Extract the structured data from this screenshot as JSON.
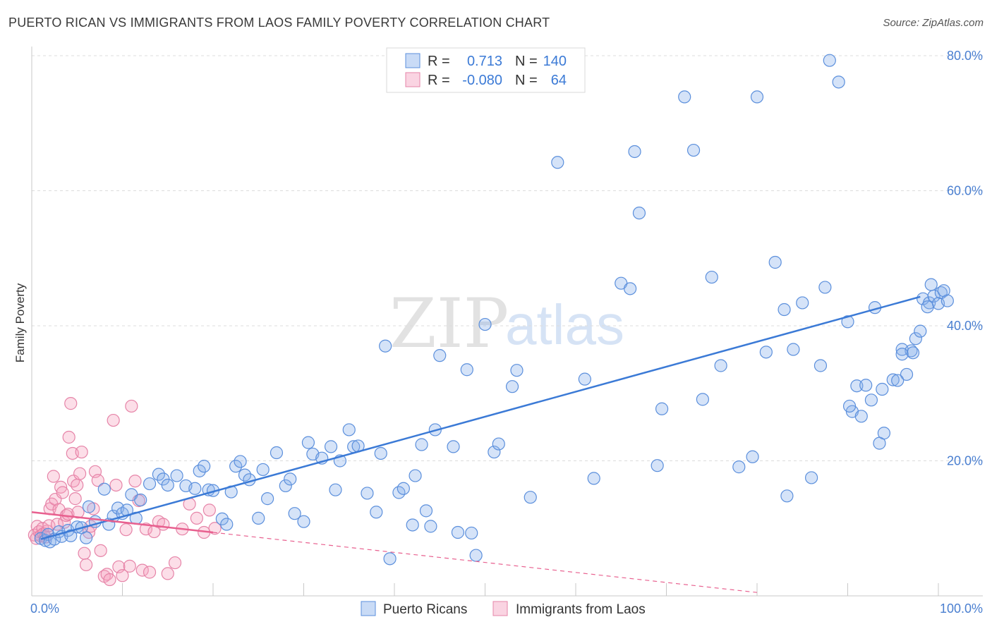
{
  "title": "PUERTO RICAN VS IMMIGRANTS FROM LAOS FAMILY POVERTY CORRELATION CHART",
  "source": "Source: ZipAtlas.com",
  "watermark": {
    "zip": "ZIP",
    "atlas": "atlas"
  },
  "colors": {
    "blue": "#3b7ad6",
    "pink": "#e8608f",
    "grid": "#dcdcdc"
  },
  "legend": {
    "rows": [
      {
        "r_label": "R =",
        "r_value": "0.713",
        "n_label": "N =",
        "n_value": "140"
      },
      {
        "r_label": "R =",
        "r_value": "-0.080",
        "n_label": "N =",
        "n_value": "64"
      }
    ]
  },
  "chart_data": {
    "type": "scatter",
    "title": "PUERTO RICAN VS IMMIGRANTS FROM LAOS FAMILY POVERTY CORRELATION CHART",
    "xlabel": "",
    "ylabel": "Family Poverty",
    "xlim": [
      0,
      100
    ],
    "ylim": [
      0,
      80
    ],
    "x_tick_labels": [
      "0.0%",
      "100.0%"
    ],
    "y_ticks": [
      20,
      40,
      60,
      80
    ],
    "y_tick_labels": [
      "20.0%",
      "40.0%",
      "60.0%",
      "80.0%"
    ],
    "grid": true,
    "series": [
      {
        "name": "Puerto Ricans",
        "r": 0.713,
        "n": 140,
        "trend": {
          "x0": 1,
          "y0": 8.4,
          "x1": 98,
          "y1": 44.3
        },
        "points": [
          [
            1,
            8.5
          ],
          [
            1.5,
            8.2
          ],
          [
            1.8,
            9.1
          ],
          [
            2,
            8.0
          ],
          [
            2.5,
            8.4
          ],
          [
            3,
            9.5
          ],
          [
            3.3,
            8.8
          ],
          [
            4,
            9.7
          ],
          [
            4.3,
            8.9
          ],
          [
            5,
            10.2
          ],
          [
            5.5,
            10.1
          ],
          [
            6,
            8.6
          ],
          [
            6.3,
            13.2
          ],
          [
            7,
            11.0
          ],
          [
            8,
            15.8
          ],
          [
            8.5,
            10.6
          ],
          [
            9,
            11.8
          ],
          [
            9.5,
            13.0
          ],
          [
            10,
            12.2
          ],
          [
            10.5,
            12.7
          ],
          [
            11,
            15.0
          ],
          [
            11.5,
            11.5
          ],
          [
            12,
            14.2
          ],
          [
            13,
            16.6
          ],
          [
            14,
            18.0
          ],
          [
            14.5,
            17.3
          ],
          [
            15,
            16.4
          ],
          [
            16,
            17.8
          ],
          [
            17,
            16.3
          ],
          [
            18,
            15.9
          ],
          [
            18.5,
            18.5
          ],
          [
            19,
            19.2
          ],
          [
            19.5,
            15.7
          ],
          [
            20,
            15.6
          ],
          [
            21,
            11.4
          ],
          [
            21.5,
            10.6
          ],
          [
            22,
            15.4
          ],
          [
            22.5,
            19.2
          ],
          [
            23,
            19.9
          ],
          [
            23.5,
            17.9
          ],
          [
            24,
            17.2
          ],
          [
            25,
            11.5
          ],
          [
            25.5,
            18.7
          ],
          [
            26,
            14.4
          ],
          [
            27,
            21.2
          ],
          [
            28,
            16.3
          ],
          [
            28.5,
            17.3
          ],
          [
            29,
            12.2
          ],
          [
            30,
            11.0
          ],
          [
            30.5,
            22.7
          ],
          [
            31,
            21.0
          ],
          [
            32,
            20.4
          ],
          [
            33,
            22.1
          ],
          [
            33.5,
            15.7
          ],
          [
            34,
            20.0
          ],
          [
            35,
            24.6
          ],
          [
            35.5,
            22.1
          ],
          [
            36,
            22.2
          ],
          [
            37,
            15.2
          ],
          [
            38,
            12.4
          ],
          [
            38.5,
            21.1
          ],
          [
            39,
            37.0
          ],
          [
            39.5,
            5.5
          ],
          [
            40.5,
            15.3
          ],
          [
            41,
            15.9
          ],
          [
            42,
            10.5
          ],
          [
            42.3,
            17.8
          ],
          [
            43,
            22.4
          ],
          [
            43.5,
            12.6
          ],
          [
            44,
            10.3
          ],
          [
            44.5,
            24.6
          ],
          [
            45,
            35.6
          ],
          [
            46.5,
            22.1
          ],
          [
            47,
            9.4
          ],
          [
            48,
            33.5
          ],
          [
            48.5,
            9.3
          ],
          [
            49,
            6.0
          ],
          [
            50,
            40.2
          ],
          [
            51,
            21.3
          ],
          [
            51.5,
            22.5
          ],
          [
            53,
            31.0
          ],
          [
            53.5,
            33.4
          ],
          [
            55,
            14.6
          ],
          [
            58,
            64.2
          ],
          [
            61,
            32.1
          ],
          [
            62,
            17.4
          ],
          [
            65,
            46.3
          ],
          [
            66,
            45.5
          ],
          [
            66.5,
            65.8
          ],
          [
            67,
            56.7
          ],
          [
            69,
            19.3
          ],
          [
            69.5,
            27.7
          ],
          [
            72,
            73.9
          ],
          [
            73,
            66.0
          ],
          [
            74,
            29.1
          ],
          [
            75,
            47.2
          ],
          [
            76,
            34.1
          ],
          [
            78,
            19.1
          ],
          [
            79.5,
            20.6
          ],
          [
            80,
            73.9
          ],
          [
            81,
            36.1
          ],
          [
            82,
            49.4
          ],
          [
            83,
            42.4
          ],
          [
            83.3,
            14.8
          ],
          [
            84,
            36.5
          ],
          [
            85,
            43.4
          ],
          [
            86,
            17.5
          ],
          [
            87,
            34.1
          ],
          [
            87.5,
            45.7
          ],
          [
            88,
            79.3
          ],
          [
            89,
            76.1
          ],
          [
            90,
            40.6
          ],
          [
            90.5,
            27.3
          ],
          [
            91,
            31.1
          ],
          [
            91.5,
            26.6
          ],
          [
            92,
            31.2
          ],
          [
            93,
            42.7
          ],
          [
            93.5,
            22.6
          ],
          [
            94,
            24.1
          ],
          [
            95,
            32.0
          ],
          [
            96,
            36.5
          ],
          [
            96.5,
            32.8
          ],
          [
            97,
            36.3
          ],
          [
            97.5,
            38.1
          ],
          [
            98,
            39.2
          ],
          [
            98.3,
            44.0
          ],
          [
            99,
            43.4
          ],
          [
            99.5,
            44.4
          ],
          [
            100,
            43.3
          ],
          [
            100.3,
            44.9
          ],
          [
            100.6,
            45.2
          ],
          [
            101,
            43.7
          ],
          [
            99.2,
            46.1
          ],
          [
            98.8,
            42.8
          ],
          [
            97.2,
            36.0
          ],
          [
            96.0,
            35.8
          ],
          [
            95.5,
            31.9
          ],
          [
            93.8,
            30.6
          ],
          [
            92.6,
            29.0
          ],
          [
            90.2,
            28.1
          ]
        ]
      },
      {
        "name": "Immigrants from Laos",
        "r": -0.08,
        "n": 64,
        "trend": {
          "x0": 0,
          "y0": 12.4,
          "x1": 20,
          "y1": 9.4
        },
        "trend_extension": {
          "x0": 20,
          "y0": 9.4,
          "x1": 80,
          "y1": 0.5
        },
        "points": [
          [
            0.3,
            9.0
          ],
          [
            0.5,
            8.5
          ],
          [
            0.6,
            10.3
          ],
          [
            0.8,
            9.5
          ],
          [
            1,
            8.9
          ],
          [
            1.2,
            10.0
          ],
          [
            1.3,
            9.2
          ],
          [
            1.5,
            8.7
          ],
          [
            1.7,
            9.6
          ],
          [
            1.9,
            10.4
          ],
          [
            2,
            12.9
          ],
          [
            2.2,
            13.6
          ],
          [
            2.4,
            17.7
          ],
          [
            2.6,
            14.3
          ],
          [
            2.8,
            10.6
          ],
          [
            3,
            12.8
          ],
          [
            3.2,
            16.1
          ],
          [
            3.4,
            15.3
          ],
          [
            3.6,
            10.9
          ],
          [
            3.8,
            11.9
          ],
          [
            4,
            12.1
          ],
          [
            4.1,
            23.5
          ],
          [
            4.3,
            28.5
          ],
          [
            4.5,
            21.1
          ],
          [
            4.6,
            17.0
          ],
          [
            4.8,
            14.4
          ],
          [
            5,
            16.4
          ],
          [
            5.1,
            12.4
          ],
          [
            5.3,
            18.1
          ],
          [
            5.5,
            21.3
          ],
          [
            5.8,
            6.3
          ],
          [
            6,
            4.6
          ],
          [
            6.3,
            9.4
          ],
          [
            6.5,
            10.3
          ],
          [
            6.8,
            12.9
          ],
          [
            7,
            18.4
          ],
          [
            7.3,
            17.1
          ],
          [
            7.6,
            6.7
          ],
          [
            8,
            2.9
          ],
          [
            8.3,
            3.2
          ],
          [
            8.6,
            2.4
          ],
          [
            9,
            26.0
          ],
          [
            9.3,
            16.4
          ],
          [
            9.6,
            4.3
          ],
          [
            10,
            3.0
          ],
          [
            10.4,
            9.8
          ],
          [
            10.8,
            4.4
          ],
          [
            11,
            28.1
          ],
          [
            11.4,
            17.0
          ],
          [
            11.8,
            14.1
          ],
          [
            12.2,
            3.8
          ],
          [
            12.6,
            9.9
          ],
          [
            13,
            3.5
          ],
          [
            13.5,
            9.5
          ],
          [
            14,
            11.0
          ],
          [
            14.5,
            10.6
          ],
          [
            15,
            3.3
          ],
          [
            15.8,
            4.9
          ],
          [
            16.6,
            9.9
          ],
          [
            17.4,
            13.6
          ],
          [
            18.2,
            11.5
          ],
          [
            19,
            9.4
          ],
          [
            19.6,
            12.7
          ],
          [
            20.2,
            10.0
          ]
        ]
      }
    ]
  },
  "bottom_legend": [
    {
      "label": "Puerto Ricans"
    },
    {
      "label": "Immigrants from Laos"
    }
  ]
}
